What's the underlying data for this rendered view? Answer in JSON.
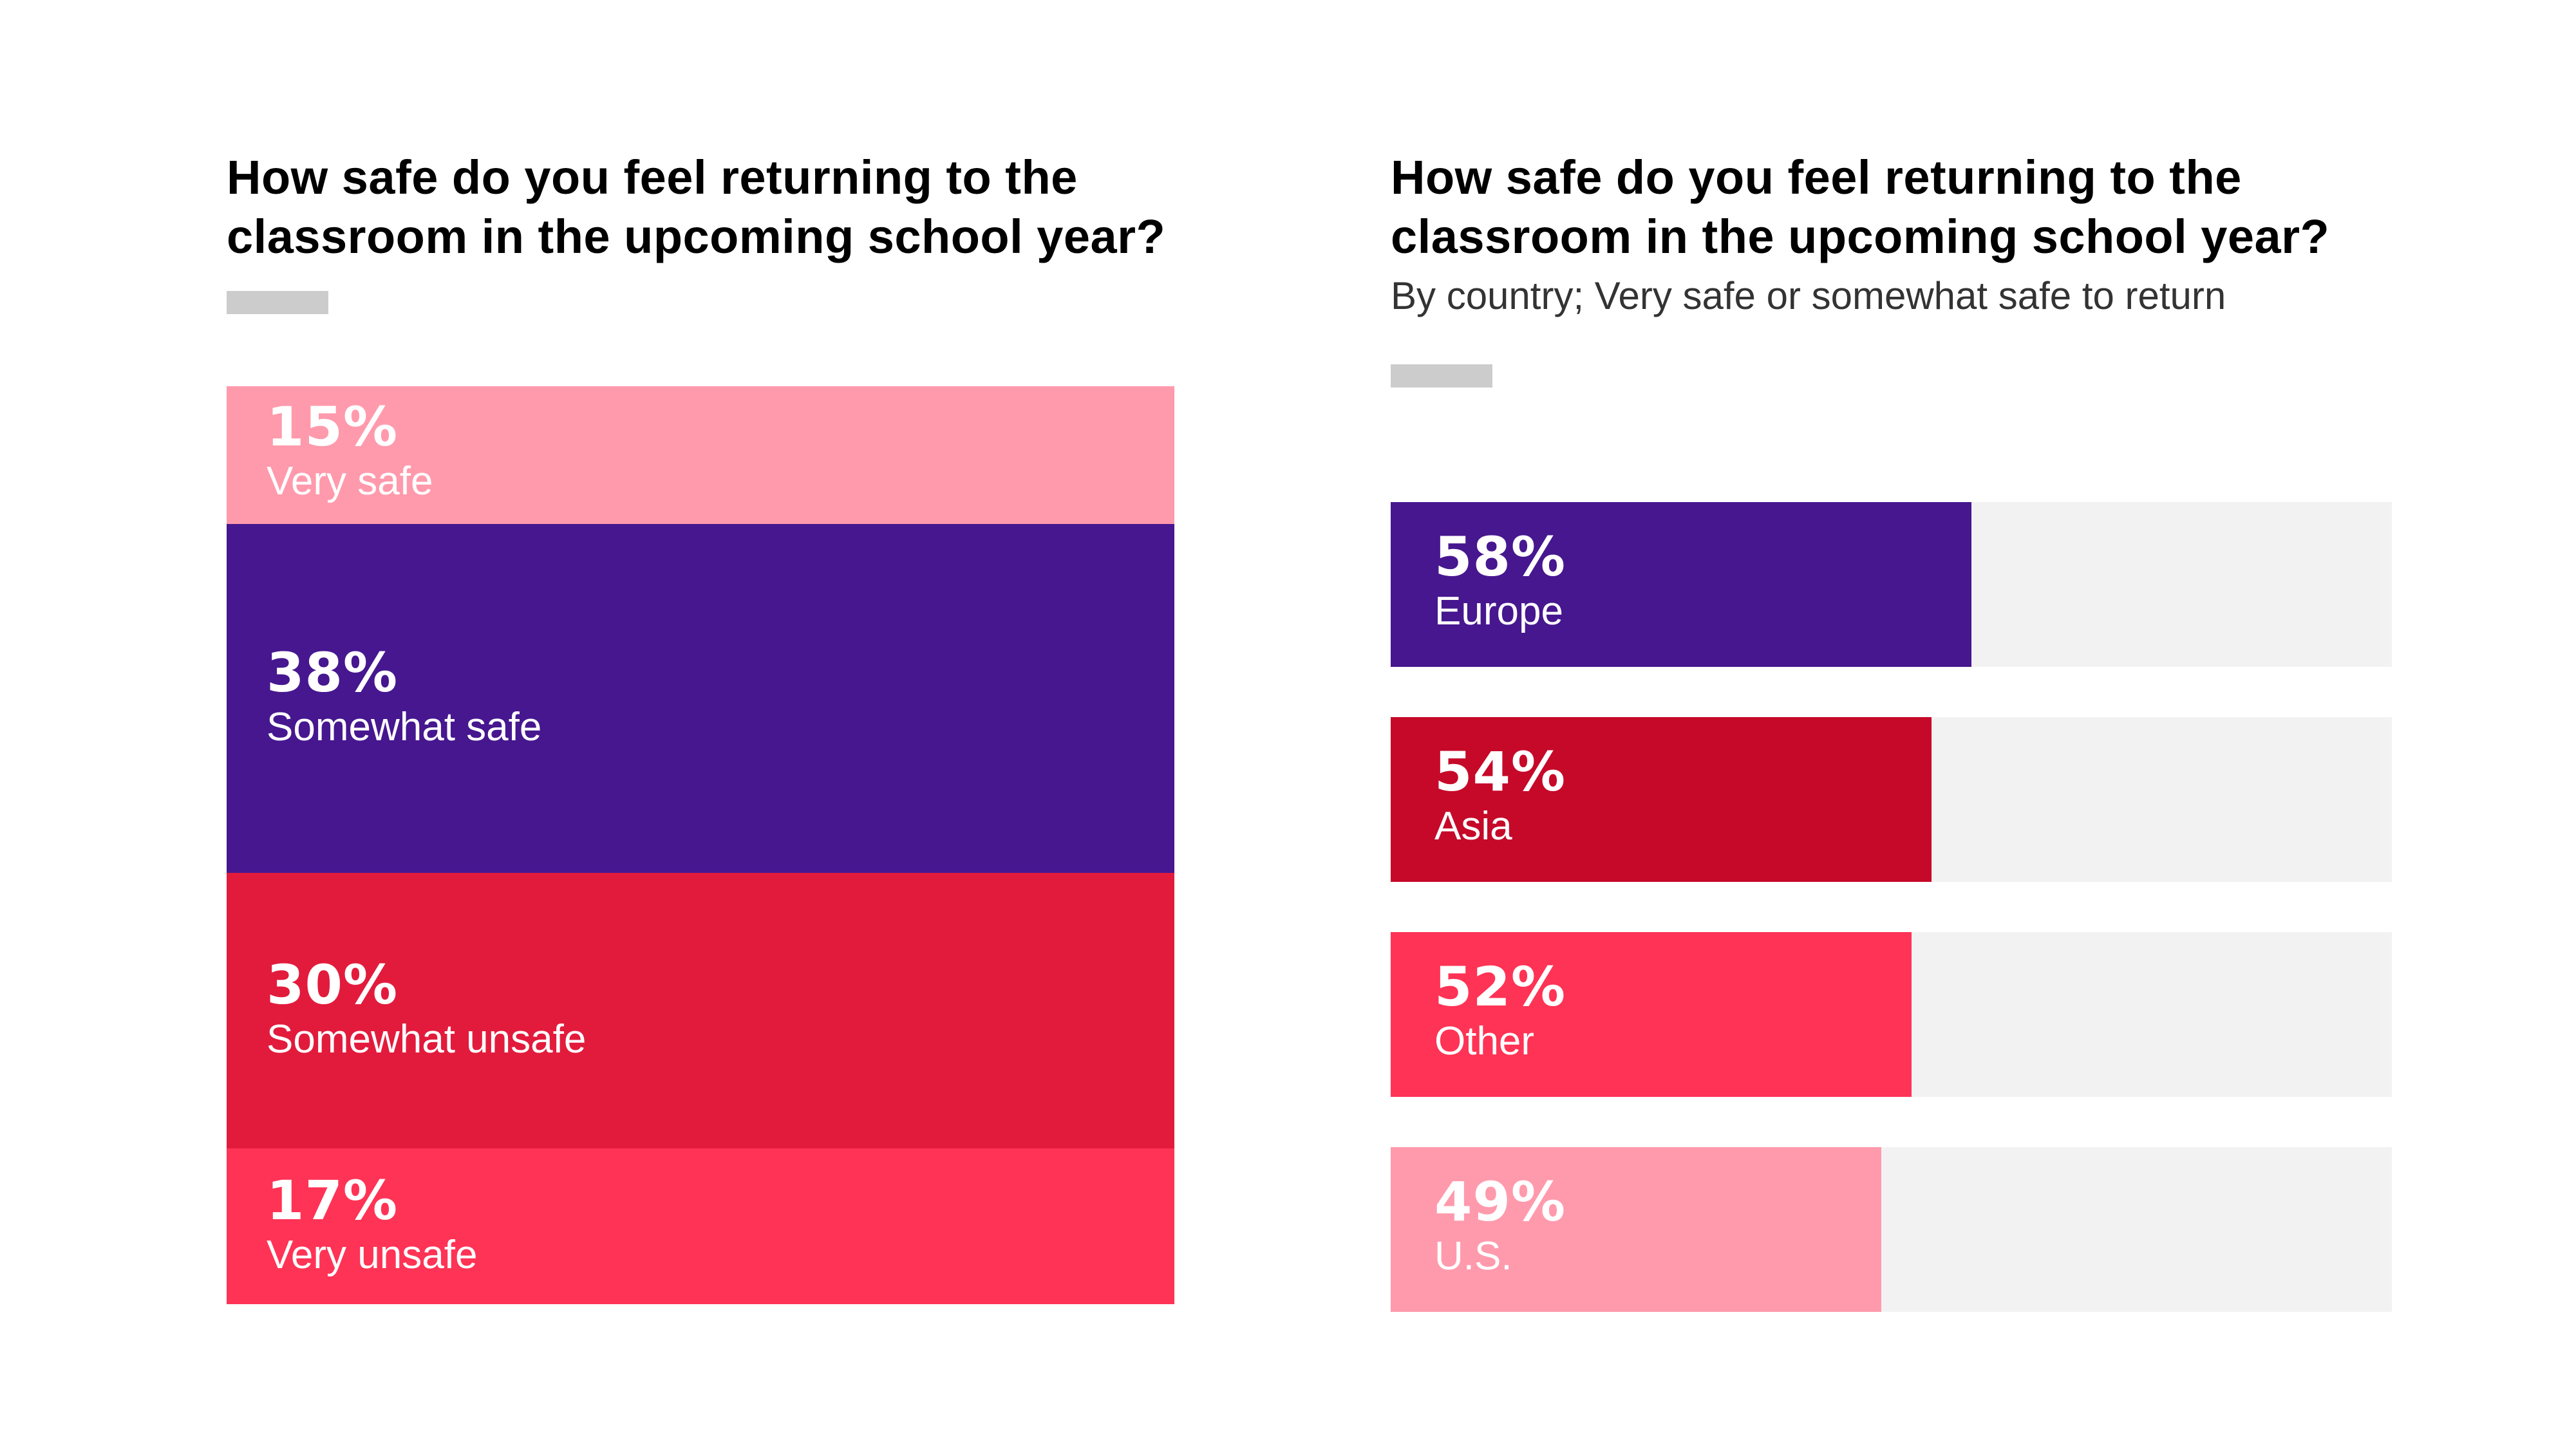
{
  "chart_data": [
    {
      "type": "bar",
      "stacked": true,
      "title": "How safe do you feel returning to the classroom in the upcoming school year?",
      "title_lines": [
        "How safe do you feel returning to the",
        "classroom in the upcoming school year?"
      ],
      "unit": "%",
      "categories": [
        "Very safe",
        "Somewhat safe",
        "Somewhat unsafe",
        "Very unsafe"
      ],
      "values": [
        15,
        38,
        30,
        17
      ],
      "labels": [
        "15%",
        "38%",
        "30%",
        "17%"
      ],
      "colors": [
        "#ff9aac",
        "#46178f",
        "#e21b3c",
        "#ff3355"
      ]
    },
    {
      "type": "bar",
      "orientation": "horizontal",
      "title": "How safe do you feel returning to the classroom in the upcoming school year?",
      "title_lines": [
        "How safe do you feel returning to the",
        "classroom in the upcoming school year?"
      ],
      "subtitle": "By country; Very safe or somewhat safe to return",
      "unit": "%",
      "categories": [
        "Europe",
        "Asia",
        "Other",
        "U.S."
      ],
      "values": [
        58,
        54,
        52,
        49
      ],
      "labels": [
        "58%",
        "54%",
        "52%",
        "49%"
      ],
      "xlim": [
        0,
        100
      ],
      "colors": [
        "#46178f",
        "#c60929",
        "#ff3355",
        "#ff9aac"
      ],
      "track_color": "#f2f2f2"
    }
  ]
}
